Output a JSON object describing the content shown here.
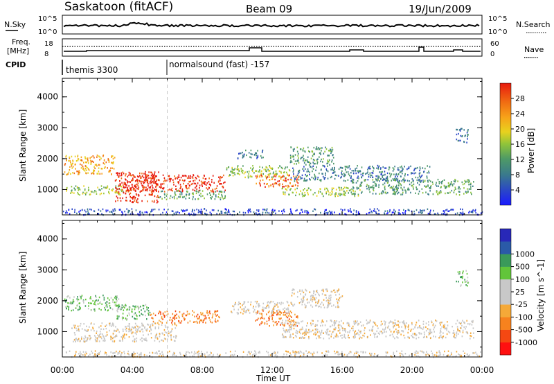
{
  "header": {
    "station": "Saskatoon (fitACF)",
    "beam": "Beam 09",
    "date": "19/Jun/2009"
  },
  "strip_labels": {
    "nsky": "N.Sky",
    "nsky_top": "10^5",
    "nsky_bottom": "10^0",
    "nsearch": "N.Search",
    "freq_line1": "Freq.",
    "freq_line2": "[MHz]",
    "freq_top": "18",
    "freq_bottom": "8",
    "nave": "Nave",
    "nave_top": "60",
    "nave_bottom": "0",
    "cpid": "CPID",
    "cpid_1": "themis 3300",
    "cpid_2": "normalsound (fast) -157"
  },
  "colors": {
    "power_scale": [
      "#1a1aff",
      "#2a46c8",
      "#3a7a8c",
      "#4e9a66",
      "#8fc43a",
      "#e8d21e",
      "#f7a319",
      "#f06a12",
      "#e81a0e"
    ],
    "velocity_scale": [
      "#ff1010",
      "#f54812",
      "#f7821e",
      "#f5a938",
      "#c8c8c8",
      "#c8c8c8",
      "#62c53a",
      "#3a9a5a",
      "#2a5aa8",
      "#2828b8"
    ]
  },
  "chart_data": [
    {
      "type": "heatmap",
      "name": "power",
      "ylabel": "Slant Range [km]",
      "colorbar_label": "Power [dB]",
      "colorbar_ticks": [
        "4",
        "8",
        "12",
        "16",
        "20",
        "24",
        "28"
      ],
      "x_ticks": [
        "00:00",
        "04:00",
        "08:00",
        "12:00",
        "16:00",
        "20:00",
        "00:00"
      ],
      "xlim_hours": [
        0,
        24
      ],
      "y_ticks": [
        "1000",
        "2000",
        "3000",
        "4000"
      ],
      "ylim_km": [
        180,
        4600
      ],
      "patches": [
        {
          "t": [
            0.1,
            3.0
          ],
          "r": [
            1500,
            2150
          ],
          "level": 6
        },
        {
          "t": [
            0.2,
            3.5
          ],
          "r": [
            850,
            1150
          ],
          "level": 4
        },
        {
          "t": [
            3.0,
            5.5
          ],
          "r": [
            600,
            1600
          ],
          "level": 8
        },
        {
          "t": [
            3.5,
            9.3
          ],
          "r": [
            950,
            1500
          ],
          "level": 8
        },
        {
          "t": [
            5.5,
            9.3
          ],
          "r": [
            700,
            1000
          ],
          "level": 3
        },
        {
          "t": [
            9.3,
            13.0
          ],
          "r": [
            1400,
            1800
          ],
          "level": 4
        },
        {
          "t": [
            11.0,
            13.5
          ],
          "r": [
            1100,
            1500
          ],
          "level": 7
        },
        {
          "t": [
            12.5,
            17.0
          ],
          "r": [
            800,
            1100
          ],
          "level": 4
        },
        {
          "t": [
            13.0,
            21.0
          ],
          "r": [
            1300,
            1800
          ],
          "level": 2
        },
        {
          "t": [
            16.5,
            23.5
          ],
          "r": [
            850,
            1350
          ],
          "level": 3
        },
        {
          "t": [
            10.0,
            11.5
          ],
          "r": [
            2000,
            2300
          ],
          "level": 2
        },
        {
          "t": [
            13.0,
            15.5
          ],
          "r": [
            1800,
            2400
          ],
          "level": 3
        },
        {
          "t": [
            22.5,
            23.2
          ],
          "r": [
            2500,
            3000
          ],
          "level": 2
        },
        {
          "t": [
            0.0,
            24.0
          ],
          "r": [
            200,
            400
          ],
          "level": 1
        }
      ]
    },
    {
      "type": "heatmap",
      "name": "velocity",
      "ylabel": "Slant Range [km]",
      "colorbar_label": "Velocity [m s^-1]",
      "colorbar_ticks": [
        "-1000",
        "-500",
        "-100",
        "-25",
        "25",
        "100",
        "500",
        "1000"
      ],
      "x_ticks": [
        "00:00",
        "04:00",
        "08:00",
        "12:00",
        "16:00",
        "20:00",
        "00:00"
      ],
      "xlabel": "Time UT",
      "xlim_hours": [
        0,
        24
      ],
      "y_ticks": [
        "1000",
        "2000",
        "3000",
        "4000"
      ],
      "ylim_km": [
        180,
        4600
      ],
      "patches": [
        {
          "t": [
            0.1,
            3.2
          ],
          "r": [
            1700,
            2200
          ],
          "level": 6
        },
        {
          "t": [
            3.0,
            5.0
          ],
          "r": [
            1400,
            1900
          ],
          "level": 6
        },
        {
          "t": [
            0.5,
            6.5
          ],
          "r": [
            700,
            1300
          ],
          "level": 4
        },
        {
          "t": [
            5.0,
            9.0
          ],
          "r": [
            1300,
            1700
          ],
          "level": 2
        },
        {
          "t": [
            11.0,
            13.5
          ],
          "r": [
            1200,
            1700
          ],
          "level": 2
        },
        {
          "t": [
            9.5,
            13.0
          ],
          "r": [
            1600,
            2000
          ],
          "level": 4
        },
        {
          "t": [
            12.5,
            23.5
          ],
          "r": [
            800,
            1400
          ],
          "level": 4
        },
        {
          "t": [
            13.0,
            16.0
          ],
          "r": [
            1800,
            2400
          ],
          "level": 4
        },
        {
          "t": [
            22.5,
            23.2
          ],
          "r": [
            2500,
            3000
          ],
          "level": 6
        },
        {
          "t": [
            0.0,
            24.0
          ],
          "r": [
            200,
            400
          ],
          "level": 4
        }
      ]
    }
  ]
}
